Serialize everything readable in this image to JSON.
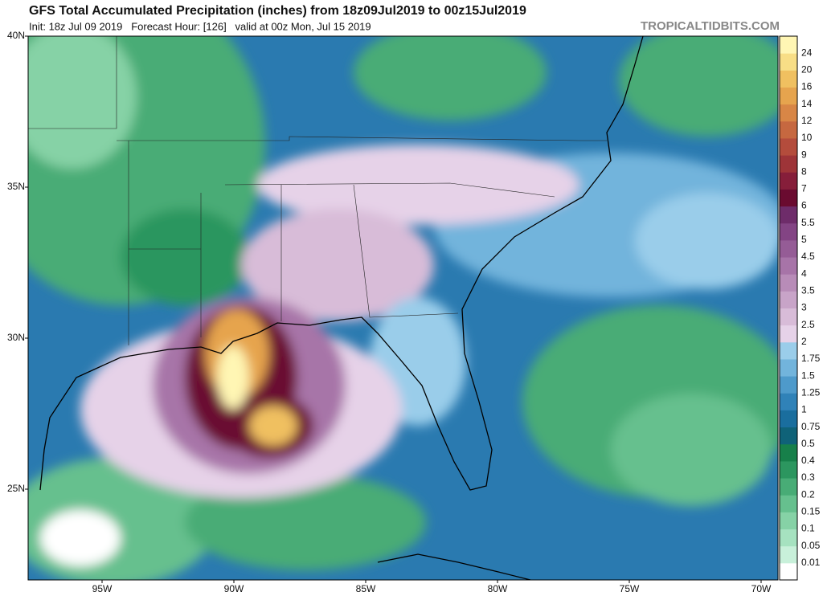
{
  "header": {
    "title": "GFS Total Accumulated Precipitation (inches) from 18z09Jul2019 to 00z15Jul2019",
    "subtitle": "Init: 18z Jul 09 2019   Forecast Hour: [126]   valid at 00z Mon, Jul 15 2019",
    "watermark": "TROPICALTIDBITS.COM"
  },
  "map": {
    "latitude_labels": [
      "40N",
      "35N",
      "30N",
      "25N"
    ],
    "longitude_labels": [
      "95W",
      "90W",
      "85W",
      "80W",
      "75W",
      "70W"
    ]
  },
  "colorbar": {
    "ticks": [
      0.01,
      0.05,
      0.1,
      0.15,
      0.2,
      0.3,
      0.4,
      0.5,
      0.75,
      1,
      1.25,
      1.5,
      1.75,
      2,
      2.5,
      3,
      3.5,
      4,
      4.5,
      5,
      5.5,
      6,
      7,
      8,
      9,
      10,
      12,
      14,
      16,
      20,
      24
    ],
    "colors": [
      "#ffffff",
      "#c8f0da",
      "#a6e2c0",
      "#86d2a6",
      "#66c08e",
      "#48ac76",
      "#2c965f",
      "#17804a",
      "#0f6278",
      "#1a6e9e",
      "#3082b8",
      "#4e9acb",
      "#72b4dc",
      "#9acdea",
      "#e6d2e8",
      "#d8bcd8",
      "#c8a4c8",
      "#b88cb8",
      "#a774a8",
      "#955c96",
      "#834484",
      "#6e2c6a",
      "#6a0b30",
      "#861e3a",
      "#9e3438",
      "#b44c3c",
      "#c66840",
      "#d88646",
      "#e6a44e",
      "#f0c060",
      "#f8de86",
      "#fff6b4"
    ]
  }
}
